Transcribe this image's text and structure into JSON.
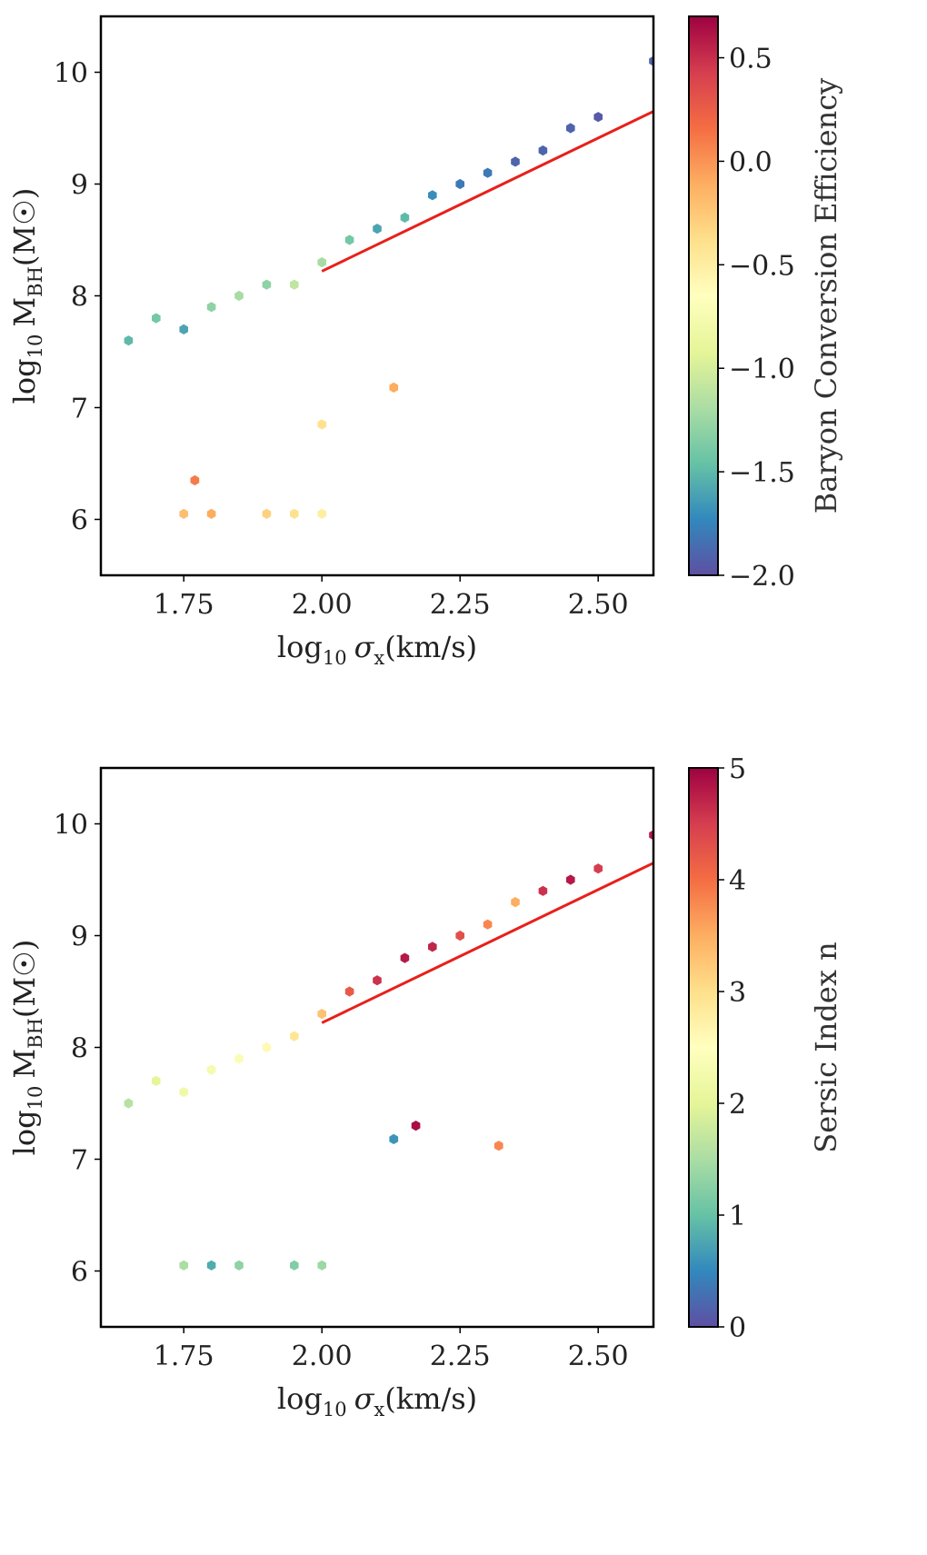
{
  "chart_data": [
    {
      "type": "scatter",
      "style": "hexbin",
      "xlabel": {
        "prefix": "log",
        "sub": "10",
        "sym": "σ",
        "symsub": "x",
        "unit": "(km/s)"
      },
      "ylabel": {
        "prefix": "log",
        "sub": "10",
        "sym": "M",
        "symsub": "BH",
        "unit": "(M☉)"
      },
      "xlim": [
        1.6,
        2.6
      ],
      "ylim": [
        5.5,
        10.5
      ],
      "xticks": [
        1.75,
        2.0,
        2.25,
        2.5
      ],
      "xtick_labels": [
        "1.75",
        "2.00",
        "2.25",
        "2.50"
      ],
      "yticks": [
        6,
        7,
        8,
        9,
        10
      ],
      "ytick_labels": [
        "6",
        "7",
        "8",
        "9",
        "10"
      ],
      "colorbar": {
        "label": "Baryon Conversion Efficiency",
        "range": [
          -2.0,
          0.7
        ],
        "ticks": [
          0.5,
          0.0,
          -0.5,
          -1.0,
          -1.5,
          -2.0
        ],
        "tick_labels": [
          "0.5",
          "0.0",
          "−0.5",
          "−1.0",
          "−1.5",
          "−2.0"
        ],
        "colors": [
          "#5e4fa2",
          "#3288bd",
          "#66c2a5",
          "#abdda4",
          "#e6f598",
          "#ffffbf",
          "#fee08b",
          "#fdae61",
          "#f46d43",
          "#d53e4f",
          "#9e0142"
        ]
      },
      "fit_line": {
        "x": [
          2.0,
          2.6
        ],
        "y": [
          8.22,
          9.65
        ],
        "color": "#e8201a"
      },
      "points": [
        {
          "x": 1.65,
          "y": 7.6,
          "c": -1.5
        },
        {
          "x": 1.7,
          "y": 7.8,
          "c": -1.4
        },
        {
          "x": 1.75,
          "y": 7.7,
          "c": -1.6
        },
        {
          "x": 1.8,
          "y": 7.9,
          "c": -1.3
        },
        {
          "x": 1.85,
          "y": 8.0,
          "c": -1.2
        },
        {
          "x": 1.9,
          "y": 8.1,
          "c": -1.3
        },
        {
          "x": 1.95,
          "y": 8.1,
          "c": -1.1
        },
        {
          "x": 2.0,
          "y": 8.3,
          "c": -1.2
        },
        {
          "x": 2.05,
          "y": 8.5,
          "c": -1.4
        },
        {
          "x": 2.1,
          "y": 8.6,
          "c": -1.6
        },
        {
          "x": 2.15,
          "y": 8.7,
          "c": -1.5
        },
        {
          "x": 2.2,
          "y": 8.9,
          "c": -1.7
        },
        {
          "x": 2.25,
          "y": 9.0,
          "c": -1.8
        },
        {
          "x": 2.3,
          "y": 9.1,
          "c": -1.8
        },
        {
          "x": 2.35,
          "y": 9.2,
          "c": -1.9
        },
        {
          "x": 2.4,
          "y": 9.3,
          "c": -1.9
        },
        {
          "x": 2.45,
          "y": 9.5,
          "c": -1.9
        },
        {
          "x": 2.5,
          "y": 9.6,
          "c": -1.95
        },
        {
          "x": 2.6,
          "y": 10.1,
          "c": -1.9
        },
        {
          "x": 1.75,
          "y": 6.05,
          "c": -0.2
        },
        {
          "x": 1.8,
          "y": 6.05,
          "c": -0.1
        },
        {
          "x": 1.9,
          "y": 6.05,
          "c": -0.3
        },
        {
          "x": 1.95,
          "y": 6.05,
          "c": -0.4
        },
        {
          "x": 2.0,
          "y": 6.05,
          "c": -0.5
        },
        {
          "x": 1.77,
          "y": 6.35,
          "c": 0.1
        },
        {
          "x": 2.13,
          "y": 7.18,
          "c": -0.1
        },
        {
          "x": 2.0,
          "y": 6.85,
          "c": -0.4
        }
      ]
    },
    {
      "type": "scatter",
      "style": "hexbin",
      "xlabel": {
        "prefix": "log",
        "sub": "10",
        "sym": "σ",
        "symsub": "x",
        "unit": "(km/s)"
      },
      "ylabel": {
        "prefix": "log",
        "sub": "10",
        "sym": "M",
        "symsub": "BH",
        "unit": "(M☉)"
      },
      "xlim": [
        1.6,
        2.6
      ],
      "ylim": [
        5.5,
        10.5
      ],
      "xticks": [
        1.75,
        2.0,
        2.25,
        2.5
      ],
      "xtick_labels": [
        "1.75",
        "2.00",
        "2.25",
        "2.50"
      ],
      "yticks": [
        6,
        7,
        8,
        9,
        10
      ],
      "ytick_labels": [
        "6",
        "7",
        "8",
        "9",
        "10"
      ],
      "colorbar": {
        "label": "Sersic Index n",
        "range": [
          0,
          5
        ],
        "ticks": [
          5,
          4,
          3,
          2,
          1,
          0
        ],
        "tick_labels": [
          "5",
          "4",
          "3",
          "2",
          "1",
          "0"
        ],
        "colors": [
          "#5e4fa2",
          "#3288bd",
          "#66c2a5",
          "#abdda4",
          "#e6f598",
          "#ffffbf",
          "#fee08b",
          "#fdae61",
          "#f46d43",
          "#d53e4f",
          "#9e0142"
        ]
      },
      "fit_line": {
        "x": [
          2.0,
          2.6
        ],
        "y": [
          8.22,
          9.65
        ],
        "color": "#e8201a"
      },
      "points": [
        {
          "x": 1.65,
          "y": 7.5,
          "c": 1.6
        },
        {
          "x": 1.7,
          "y": 7.7,
          "c": 2.0
        },
        {
          "x": 1.75,
          "y": 7.6,
          "c": 2.2
        },
        {
          "x": 1.8,
          "y": 7.8,
          "c": 2.3
        },
        {
          "x": 1.85,
          "y": 7.9,
          "c": 2.4
        },
        {
          "x": 1.9,
          "y": 8.0,
          "c": 2.6
        },
        {
          "x": 1.95,
          "y": 8.1,
          "c": 2.9
        },
        {
          "x": 2.0,
          "y": 8.3,
          "c": 3.3
        },
        {
          "x": 2.05,
          "y": 8.5,
          "c": 4.2
        },
        {
          "x": 2.1,
          "y": 8.6,
          "c": 4.6
        },
        {
          "x": 2.15,
          "y": 8.8,
          "c": 4.8
        },
        {
          "x": 2.2,
          "y": 8.9,
          "c": 4.7
        },
        {
          "x": 2.25,
          "y": 9.0,
          "c": 4.3
        },
        {
          "x": 2.3,
          "y": 9.1,
          "c": 3.8
        },
        {
          "x": 2.35,
          "y": 9.3,
          "c": 3.5
        },
        {
          "x": 2.4,
          "y": 9.4,
          "c": 4.6
        },
        {
          "x": 2.45,
          "y": 9.5,
          "c": 4.8
        },
        {
          "x": 2.5,
          "y": 9.6,
          "c": 4.5
        },
        {
          "x": 2.6,
          "y": 9.9,
          "c": 4.8
        },
        {
          "x": 1.75,
          "y": 6.05,
          "c": 1.5
        },
        {
          "x": 1.8,
          "y": 6.05,
          "c": 0.8
        },
        {
          "x": 1.85,
          "y": 6.05,
          "c": 1.3
        },
        {
          "x": 1.95,
          "y": 6.05,
          "c": 1.2
        },
        {
          "x": 2.0,
          "y": 6.05,
          "c": 1.4
        },
        {
          "x": 2.13,
          "y": 7.18,
          "c": 0.6
        },
        {
          "x": 2.17,
          "y": 7.3,
          "c": 4.9
        },
        {
          "x": 2.32,
          "y": 7.12,
          "c": 3.8
        }
      ]
    }
  ]
}
